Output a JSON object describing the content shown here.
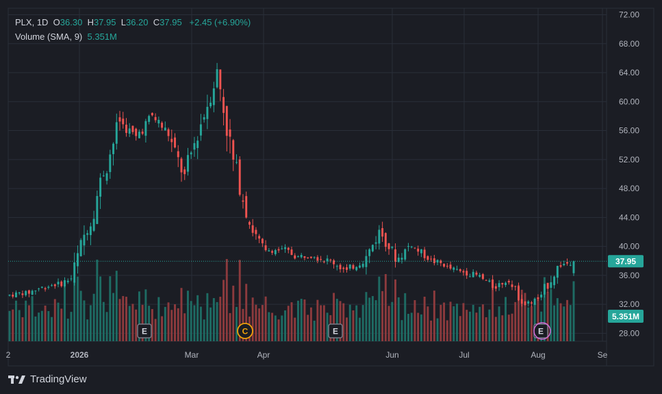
{
  "header": {
    "symbol": "PLX",
    "interval": "1D",
    "ohlc": {
      "o_label": "O",
      "o": "36.30",
      "h_label": "H",
      "h": "37.95",
      "l_label": "L",
      "l": "36.20",
      "c_label": "C",
      "c": "37.95",
      "change": "+2.45 (+6.90%)"
    },
    "volume_label": "Volume (SMA, 9)",
    "volume_value": "5.351M"
  },
  "price_badge": "37.95",
  "volume_badge": "5.351M",
  "brand": "TradingView",
  "colors": {
    "up": "#26a69a",
    "down": "#ef5350",
    "up_volume": "#1e6b63",
    "down_volume": "#8c3a3d",
    "background": "#1b1d24",
    "grid": "#2a2e39",
    "earnings_marker": "#787b86",
    "dividend_marker": "#f0a30a",
    "split_marker": "#d36bd8"
  },
  "chart_data": {
    "type": "candlestick",
    "y_axis": {
      "ticks": [
        "28.00",
        "32.00",
        "36.00",
        "40.00",
        "44.00",
        "48.00",
        "52.00",
        "56.00",
        "60.00",
        "64.00",
        "68.00",
        "72.00"
      ],
      "range": [
        26.9,
        72.9
      ]
    },
    "x_axis": {
      "ticks": [
        "2",
        "2026",
        "Mar",
        "Apr",
        "Jun",
        "Jul",
        "Aug",
        "Se"
      ]
    },
    "last_price": 37.95,
    "events": [
      {
        "type": "earnings",
        "label": "E",
        "period": "early Feb"
      },
      {
        "type": "dividend",
        "label": "C",
        "period": "late Mar"
      },
      {
        "type": "earnings",
        "label": "E",
        "period": "early May"
      },
      {
        "type": "earnings",
        "label": "E",
        "period": "early Aug"
      }
    ],
    "weekly_closes": [
      {
        "week": "Dec wk1",
        "close": 33.6
      },
      {
        "week": "Dec wk2",
        "close": 34.2
      },
      {
        "week": "Dec wk3",
        "close": 34.8
      },
      {
        "week": "Dec wk4",
        "close": 35.6
      },
      {
        "week": "Jan wk1",
        "close": 43.0
      },
      {
        "week": "Jan wk2",
        "close": 50.5
      },
      {
        "week": "Jan wk3",
        "close": 57.5
      },
      {
        "week": "Jan wk4",
        "close": 55.0
      },
      {
        "week": "Feb wk1",
        "close": 58.0
      },
      {
        "week": "Feb wk2",
        "close": 55.5
      },
      {
        "week": "Feb wk3",
        "close": 49.5
      },
      {
        "week": "Feb wk4",
        "close": 57.0
      },
      {
        "week": "Mar wk1",
        "close": 64.0
      },
      {
        "week": "Mar wk2",
        "close": 51.5
      },
      {
        "week": "Mar wk3",
        "close": 43.5
      },
      {
        "week": "Mar wk4",
        "close": 39.0
      },
      {
        "week": "Apr wk1",
        "close": 39.5
      },
      {
        "week": "Apr wk2",
        "close": 38.5
      },
      {
        "week": "Apr wk3",
        "close": 38.8
      },
      {
        "week": "Apr wk4",
        "close": 38.0
      },
      {
        "week": "May wk1",
        "close": 36.5
      },
      {
        "week": "May wk2",
        "close": 38.0
      },
      {
        "week": "May wk3",
        "close": 42.0
      },
      {
        "week": "May wk4",
        "close": 38.5
      },
      {
        "week": "Jun wk1",
        "close": 40.5
      },
      {
        "week": "Jun wk2",
        "close": 38.5
      },
      {
        "week": "Jun wk3",
        "close": 37.5
      },
      {
        "week": "Jun wk4",
        "close": 36.5
      },
      {
        "week": "Jul wk1",
        "close": 36.0
      },
      {
        "week": "Jul wk2",
        "close": 34.5
      },
      {
        "week": "Jul wk3",
        "close": 35.5
      },
      {
        "week": "Jul wk4",
        "close": 32.0
      },
      {
        "week": "Aug wk1",
        "close": 33.0
      },
      {
        "week": "Aug wk2",
        "close": 37.0
      },
      {
        "week": "Aug wk3",
        "close": 37.95
      }
    ]
  }
}
